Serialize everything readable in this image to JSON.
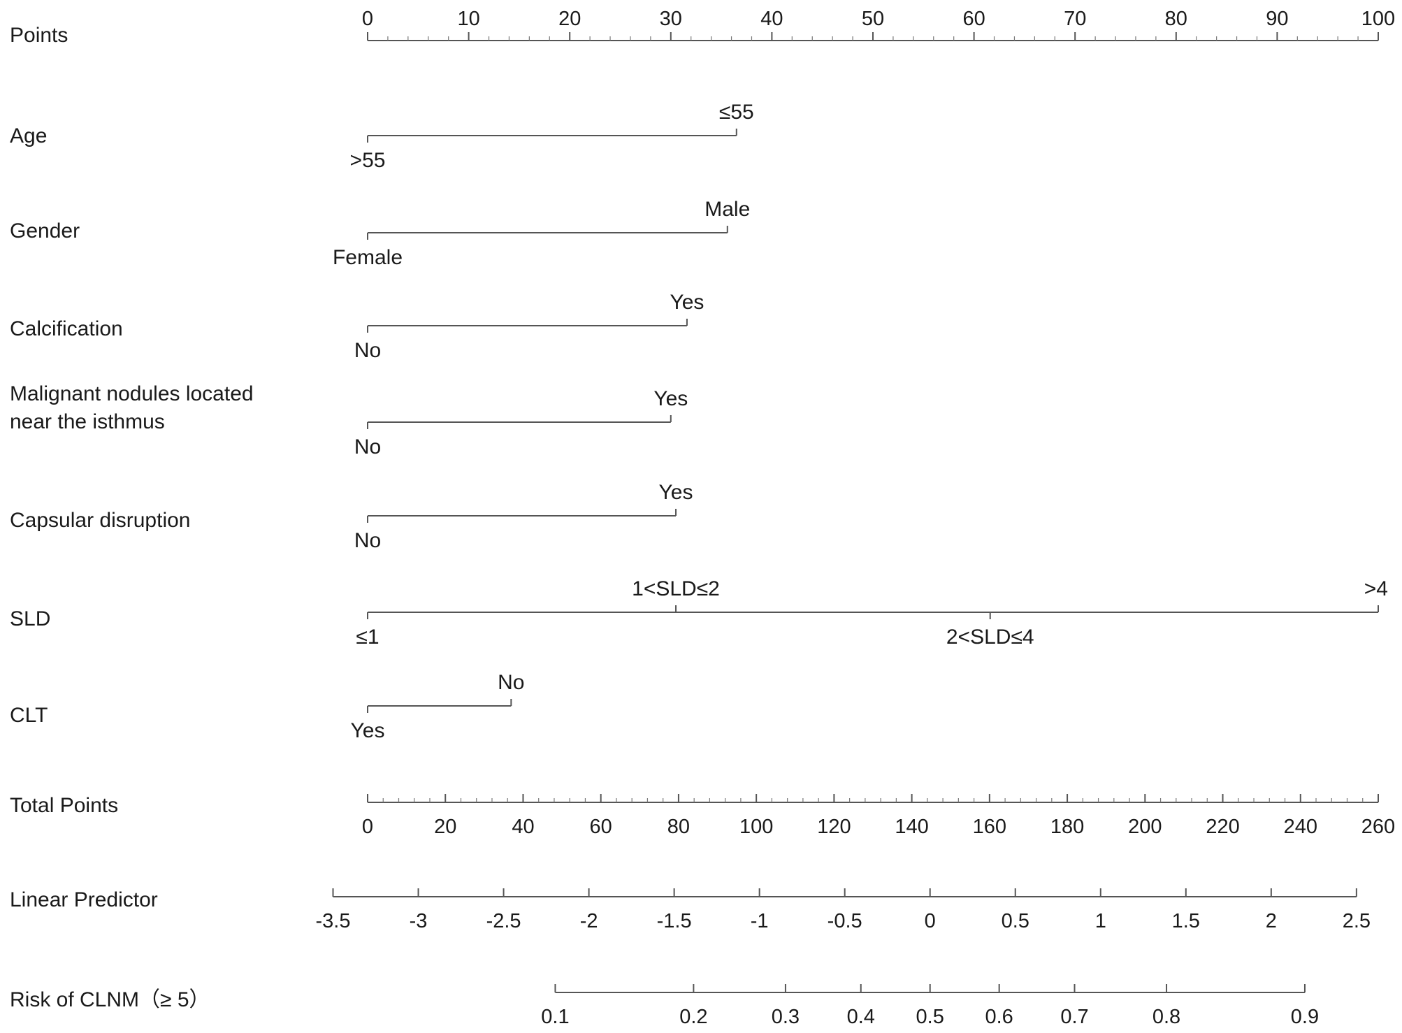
{
  "chart_data": {
    "type": "nomogram",
    "rows": [
      {
        "id": "points",
        "label": "Points",
        "kind": "scale",
        "ticks": [
          0,
          10,
          20,
          30,
          40,
          50,
          60,
          70,
          80,
          90,
          100
        ],
        "tick_labels": [
          "0",
          "10",
          "20",
          "30",
          "40",
          "50",
          "60",
          "70",
          "80",
          "90",
          "100"
        ],
        "minor_step": 2,
        "labels_above": true
      },
      {
        "id": "age",
        "label": "Age",
        "kind": "variable",
        "levels": [
          {
            "label": ">55",
            "points": 0,
            "side": "below"
          },
          {
            "label": "≤55",
            "points": 36.5,
            "side": "above"
          }
        ]
      },
      {
        "id": "gender",
        "label": "Gender",
        "kind": "variable",
        "levels": [
          {
            "label": "Female",
            "points": 0,
            "side": "below"
          },
          {
            "label": "Male",
            "points": 35.6,
            "side": "above"
          }
        ]
      },
      {
        "id": "calcification",
        "label": "Calcification",
        "kind": "variable",
        "levels": [
          {
            "label": "No",
            "points": 0,
            "side": "below"
          },
          {
            "label": "Yes",
            "points": 31.6,
            "side": "above"
          }
        ]
      },
      {
        "id": "isthmus",
        "label": [
          "Malignant nodules located",
          "near the isthmus"
        ],
        "kind": "variable",
        "levels": [
          {
            "label": "No",
            "points": 0,
            "side": "below"
          },
          {
            "label": "Yes",
            "points": 30.0,
            "side": "above"
          }
        ]
      },
      {
        "id": "capsular",
        "label": "Capsular disruption",
        "kind": "variable",
        "levels": [
          {
            "label": "No",
            "points": 0,
            "side": "below"
          },
          {
            "label": "Yes",
            "points": 30.5,
            "side": "above"
          }
        ]
      },
      {
        "id": "sld",
        "label": "SLD",
        "kind": "variable",
        "levels": [
          {
            "label": "≤1",
            "points": 0,
            "side": "below"
          },
          {
            "label": "1<SLD≤2",
            "points": 30.5,
            "side": "above"
          },
          {
            "label": "2<SLD≤4",
            "points": 61.6,
            "side": "below"
          },
          {
            "label": ">4",
            "points": 100,
            "side": "above"
          }
        ]
      },
      {
        "id": "clt",
        "label": "CLT",
        "kind": "variable",
        "levels": [
          {
            "label": "Yes",
            "points": 0,
            "side": "below"
          },
          {
            "label": "No",
            "points": 14.2,
            "side": "above"
          }
        ]
      },
      {
        "id": "total",
        "label": "Total Points",
        "kind": "scale",
        "ticks": [
          0,
          20,
          40,
          60,
          80,
          100,
          120,
          140,
          160,
          180,
          200,
          220,
          240,
          260
        ],
        "tick_labels": [
          "0",
          "20",
          "40",
          "60",
          "80",
          "100",
          "120",
          "140",
          "160",
          "180",
          "200",
          "220",
          "240",
          "260"
        ],
        "range": [
          0,
          260
        ],
        "minor_step": 4,
        "labels_above": false
      },
      {
        "id": "linear",
        "label": "Linear Predictor",
        "kind": "scale",
        "ticks": [
          -3.5,
          -3,
          -2.5,
          -2,
          -1.5,
          -1,
          -0.5,
          0,
          0.5,
          1,
          1.5,
          2,
          2.5
        ],
        "tick_labels": [
          "-3.5",
          "-3",
          "-2.5",
          "-2",
          "-1.5",
          "-1",
          "-0.5",
          "0",
          "0.5",
          "1",
          "1.5",
          "2",
          "2.5"
        ],
        "range": [
          -3.5,
          2.5
        ],
        "total_points_at_range": [
          -8.9,
          254.4
        ],
        "labels_above": false
      },
      {
        "id": "risk",
        "label": "Risk of CLNM（≥ 5）",
        "kind": "scale",
        "ticks": [
          0.1,
          0.2,
          0.3,
          0.4,
          0.5,
          0.6,
          0.7,
          0.8,
          0.9
        ],
        "tick_labels": [
          "0.1",
          "0.2",
          "0.3",
          "0.4",
          "0.5",
          "0.6",
          "0.7",
          "0.8",
          "0.9"
        ],
        "log_odds": true,
        "labels_above": false
      }
    ]
  }
}
